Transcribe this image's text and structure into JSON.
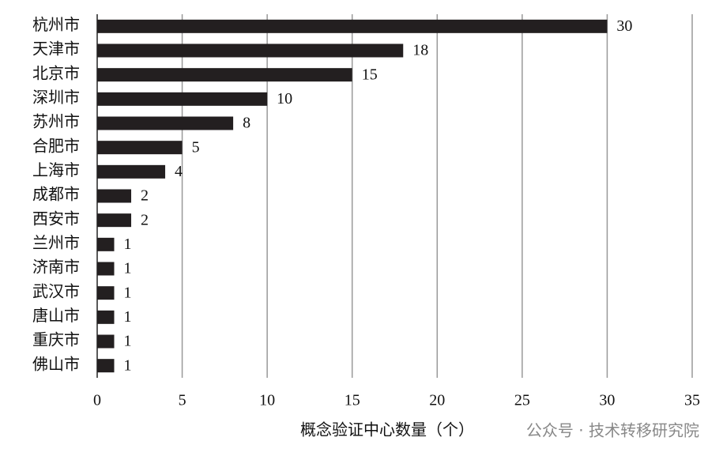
{
  "chart_data": {
    "type": "bar",
    "orientation": "horizontal",
    "x_label": "概念验证中心数量（个）",
    "categories": [
      "杭州市",
      "天津市",
      "北京市",
      "深圳市",
      "苏州市",
      "合肥市",
      "上海市",
      "成都市",
      "西安市",
      "兰州市",
      "济南市",
      "武汉市",
      "唐山市",
      "重庆市",
      "佛山市"
    ],
    "values": [
      30,
      18,
      15,
      10,
      8,
      5,
      4,
      2,
      2,
      1,
      1,
      1,
      1,
      1,
      1
    ],
    "color": "#231f20",
    "xlim": [
      0,
      35
    ],
    "xticks": [
      0,
      5,
      10,
      15,
      20,
      25,
      30,
      35
    ],
    "grid": true,
    "watermark": "公众号 · 技术转移研究院"
  }
}
